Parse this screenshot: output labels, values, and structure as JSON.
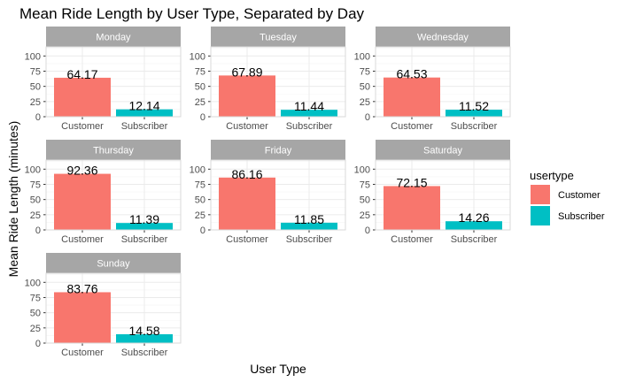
{
  "chart_data": {
    "type": "bar",
    "title": "Mean Ride Length by User Type, Separated by Day",
    "xlabel": "User Type",
    "ylabel": "Mean Ride Length (minutes)",
    "ylim": [
      0,
      115
    ],
    "yticks": [
      0,
      25,
      50,
      75,
      100
    ],
    "categories": [
      "Customer",
      "Subscriber"
    ],
    "grid": true,
    "facet_by": "day",
    "legend": {
      "title": "usertype",
      "position": "right",
      "items": [
        {
          "name": "Customer",
          "color": "#F8766D"
        },
        {
          "name": "Subscriber",
          "color": "#00BFC4"
        }
      ]
    },
    "colors": {
      "strip_bg": "#A6A6A6",
      "grid_major": "#EBEBEB",
      "grid_minor": "#F5F5F5",
      "panel_border": "#D9D9D9"
    },
    "panels": [
      {
        "name": "Monday",
        "values": [
          64.17,
          12.14
        ],
        "labels": [
          "64.17",
          "12.14"
        ]
      },
      {
        "name": "Tuesday",
        "values": [
          67.89,
          11.44
        ],
        "labels": [
          "67.89",
          "11.44"
        ]
      },
      {
        "name": "Wednesday",
        "values": [
          64.53,
          11.52
        ],
        "labels": [
          "64.53",
          "11.52"
        ]
      },
      {
        "name": "Thursday",
        "values": [
          92.36,
          11.39
        ],
        "labels": [
          "92.36",
          "11.39"
        ]
      },
      {
        "name": "Friday",
        "values": [
          86.16,
          11.85
        ],
        "labels": [
          "86.16",
          "11.85"
        ]
      },
      {
        "name": "Saturday",
        "values": [
          72.15,
          14.26
        ],
        "labels": [
          "72.15",
          "14.26"
        ]
      },
      {
        "name": "Sunday",
        "values": [
          83.76,
          14.58
        ],
        "labels": [
          "83.76",
          "14.58"
        ]
      }
    ]
  }
}
